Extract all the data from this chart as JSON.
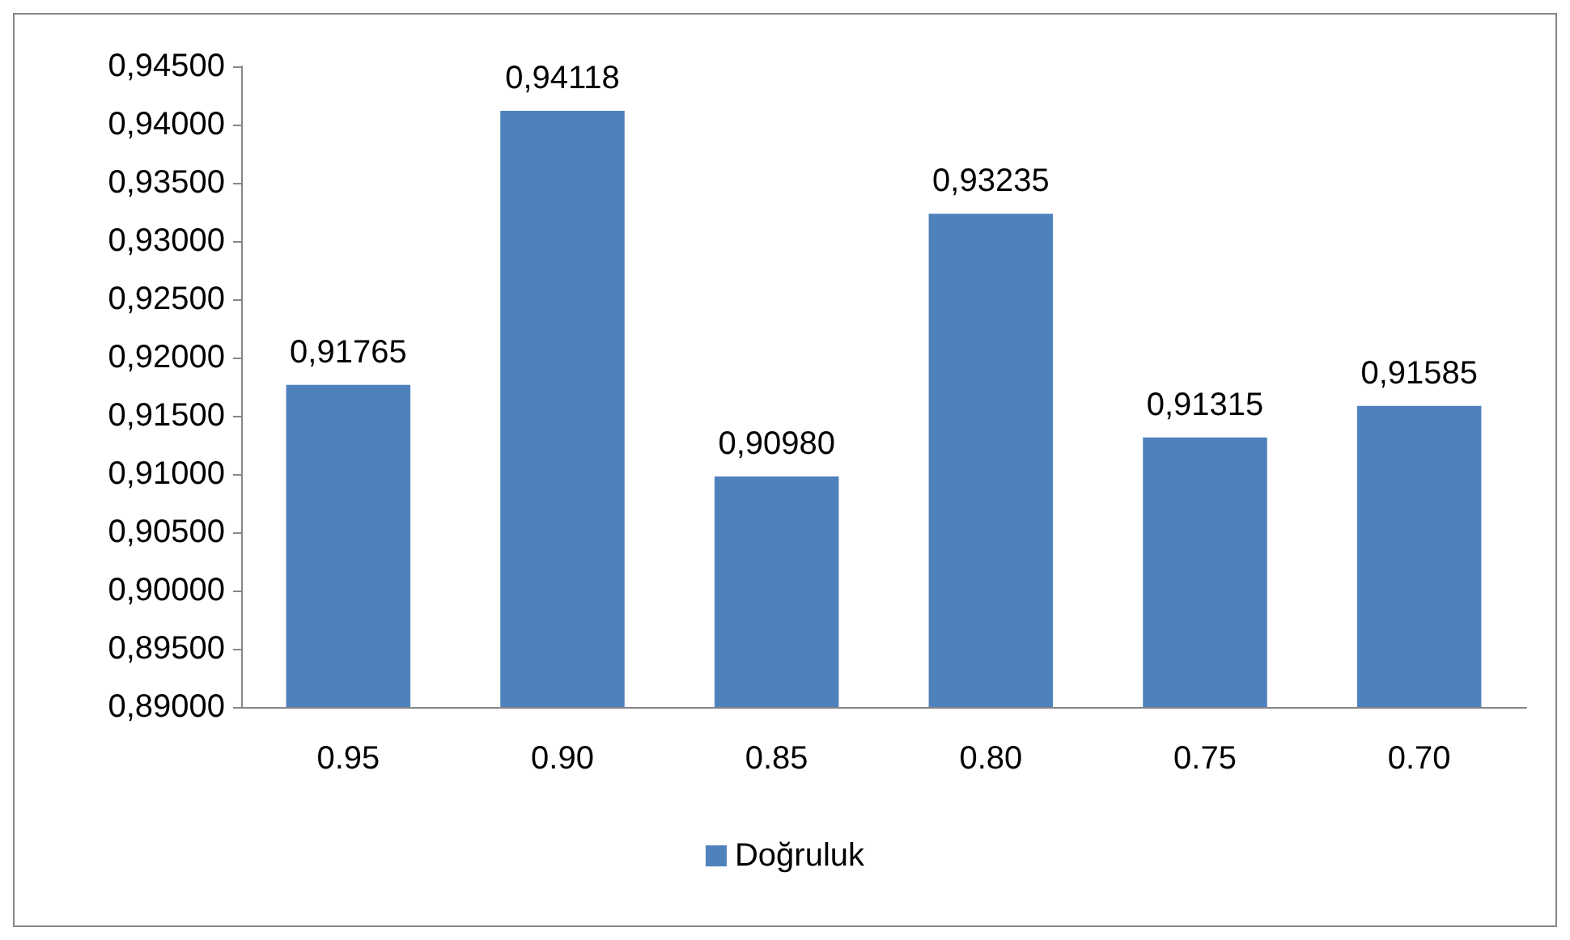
{
  "chart_data": {
    "type": "bar",
    "categories": [
      "0.95",
      "0.90",
      "0.85",
      "0.80",
      "0.75",
      "0.70"
    ],
    "series": [
      {
        "name": "Doğruluk",
        "color": "#4f81bd",
        "values": [
          0.91765,
          0.94118,
          0.9098,
          0.93235,
          0.91315,
          0.91585
        ],
        "value_labels": [
          "0,91765",
          "0,94118",
          "0,90980",
          "0,93235",
          "0,91315",
          "0,91585"
        ]
      }
    ],
    "ylim": [
      0.89,
      0.945
    ],
    "yticks": [
      {
        "value": 0.89,
        "label": "0,89000"
      },
      {
        "value": 0.895,
        "label": "0,89500"
      },
      {
        "value": 0.9,
        "label": "0,90000"
      },
      {
        "value": 0.905,
        "label": "0,90500"
      },
      {
        "value": 0.91,
        "label": "0,91000"
      },
      {
        "value": 0.915,
        "label": "0,91500"
      },
      {
        "value": 0.92,
        "label": "0,92000"
      },
      {
        "value": 0.925,
        "label": "0,92500"
      },
      {
        "value": 0.93,
        "label": "0,93000"
      },
      {
        "value": 0.935,
        "label": "0,93500"
      },
      {
        "value": 0.94,
        "label": "0,94000"
      },
      {
        "value": 0.945,
        "label": "0,94500"
      }
    ],
    "grid": false,
    "legend": "bottom"
  }
}
